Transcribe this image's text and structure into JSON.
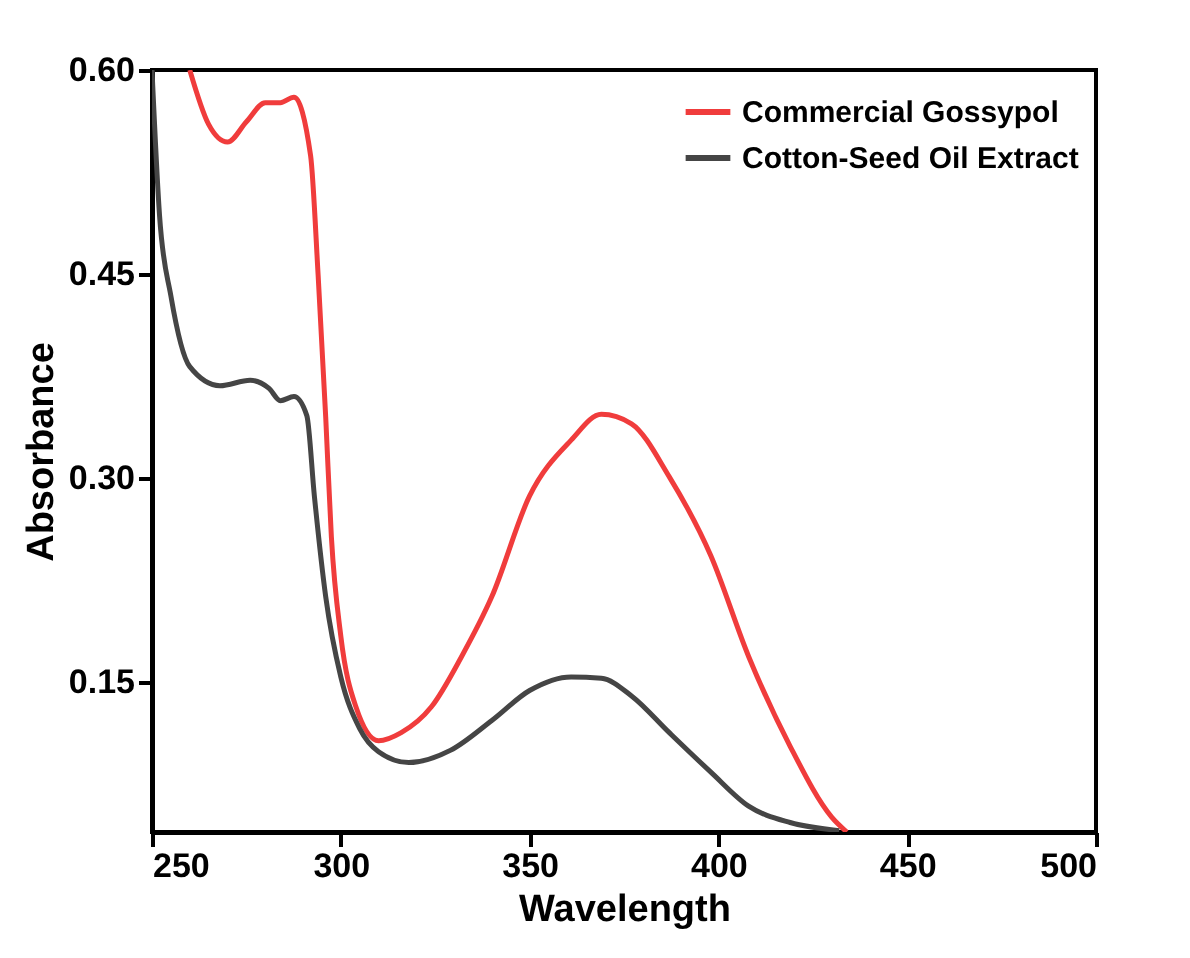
{
  "chart_data": {
    "type": "line",
    "xlabel": "Wavelength",
    "ylabel": "Absorbance",
    "xlim": [
      250,
      500
    ],
    "ylim": [
      0.04,
      0.6
    ],
    "xticks": [
      250,
      300,
      350,
      400,
      450,
      500
    ],
    "yticks": [
      {
        "value": 0.15,
        "label": "0.15"
      },
      {
        "value": 0.3,
        "label": "0.30"
      },
      {
        "value": 0.45,
        "label": "0.45"
      },
      {
        "value": 0.6,
        "label": "0.60"
      }
    ],
    "legend": "top right",
    "grid": false,
    "series": [
      {
        "name": "Commercial Gossypol",
        "color": "#f03c3c",
        "x": [
          260,
          265,
          270,
          275,
          280,
          284,
          287.6,
          292,
          294,
          296,
          297.5,
          300,
          304,
          310,
          316,
          324,
          332,
          340,
          350,
          361,
          369,
          377,
          387,
          398,
          408,
          419,
          430,
          434
        ],
        "values": [
          0.6,
          0.56,
          0.547,
          0.562,
          0.576,
          0.576,
          0.58,
          0.537,
          0.449,
          0.345,
          0.257,
          0.184,
          0.132,
          0.107,
          0.113,
          0.132,
          0.169,
          0.213,
          0.287,
          0.328,
          0.347,
          0.34,
          0.301,
          0.243,
          0.169,
          0.103,
          0.051,
          0.04
        ]
      },
      {
        "name": "Cotton-Seed Oil Extract",
        "color": "#454545",
        "x": [
          250,
          252,
          255,
          260,
          268,
          276,
          281,
          284,
          287.6,
          291,
          293,
          296,
          300,
          305,
          310,
          318,
          329,
          340,
          350,
          361,
          369,
          377,
          387,
          398,
          408,
          419,
          432
        ],
        "values": [
          0.6,
          0.493,
          0.434,
          0.382,
          0.368,
          0.372,
          0.366,
          0.357,
          0.36,
          0.346,
          0.287,
          0.213,
          0.154,
          0.116,
          0.099,
          0.091,
          0.1,
          0.122,
          0.144,
          0.154,
          0.153,
          0.14,
          0.113,
          0.084,
          0.059,
          0.047,
          0.041
        ]
      }
    ]
  }
}
